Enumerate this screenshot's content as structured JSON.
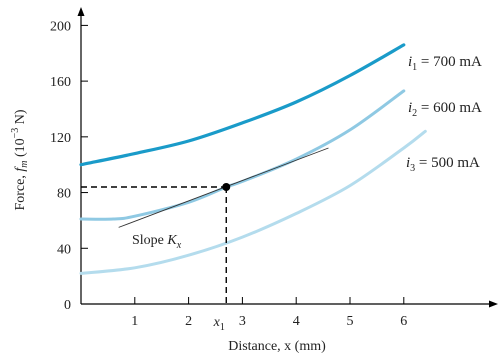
{
  "chart_data": {
    "type": "line",
    "xlabel": "Distance, x (mm)",
    "ylabel": "Force, f_m (10^-3 N)",
    "xlim": [
      0,
      7.7
    ],
    "ylim": [
      0,
      200
    ],
    "x_ticks": [
      {
        "value": 1,
        "label": "1"
      },
      {
        "value": 2,
        "label": "2"
      },
      {
        "value": 3,
        "label": "3"
      },
      {
        "value": 4,
        "label": "4"
      },
      {
        "value": 5,
        "label": "5"
      },
      {
        "value": 6,
        "label": "6"
      }
    ],
    "y_ticks": [
      {
        "value": 0,
        "label": "0"
      },
      {
        "value": 40,
        "label": "40"
      },
      {
        "value": 80,
        "label": "80"
      },
      {
        "value": 120,
        "label": "120"
      },
      {
        "value": 160,
        "label": "160"
      },
      {
        "value": 200,
        "label": "200"
      }
    ],
    "series": [
      {
        "name": "i1 = 700 mA",
        "label_sym": "i",
        "label_sub": "1",
        "label_val": " = 700 mA",
        "color": "#1a9bc9",
        "points": [
          [
            0,
            100
          ],
          [
            1,
            108
          ],
          [
            2,
            117
          ],
          [
            3,
            130
          ],
          [
            4,
            145
          ],
          [
            5,
            164
          ],
          [
            6,
            186
          ]
        ]
      },
      {
        "name": "i2 = 600 mA",
        "label_sym": "i",
        "label_sub": "2",
        "label_val": " = 600 mA",
        "color": "#8fc9e3",
        "points": [
          [
            0,
            61
          ],
          [
            0.6,
            61
          ],
          [
            1,
            63
          ],
          [
            2,
            73
          ],
          [
            2.7,
            84
          ],
          [
            3,
            88
          ],
          [
            4,
            104
          ],
          [
            5,
            125
          ],
          [
            6,
            153
          ]
        ]
      },
      {
        "name": "i3 = 500 mA",
        "label_sym": "i",
        "label_sub": "3",
        "label_val": " = 500 mA",
        "color": "#b4dced",
        "points": [
          [
            0,
            22
          ],
          [
            1,
            26
          ],
          [
            2,
            35
          ],
          [
            3,
            48
          ],
          [
            4,
            65
          ],
          [
            5,
            85
          ],
          [
            6,
            112
          ],
          [
            6.4,
            124
          ]
        ]
      }
    ],
    "annotations": {
      "point": {
        "x": 2.7,
        "y": 84
      },
      "x1_label_sym": "x",
      "x1_label_sub": "1",
      "slope_label_text": "Slope ",
      "slope_label_sym": "K",
      "slope_label_sub": "x",
      "tangent": {
        "from": [
          0.7,
          55
        ],
        "to": [
          4.6,
          112
        ]
      }
    },
    "colors": {
      "axis": "#000000",
      "tangent": "#333333",
      "marker": "#000000"
    }
  }
}
